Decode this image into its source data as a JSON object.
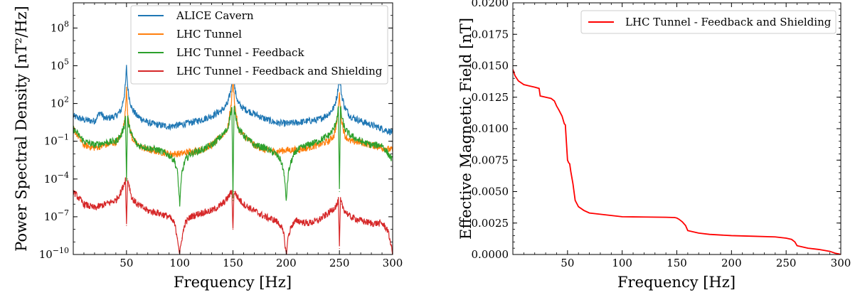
{
  "chart_data": [
    {
      "type": "line",
      "title": "",
      "xlabel": "Frequency [Hz]",
      "ylabel": "Power Spectral Density",
      "ylabel_unit": "[nT²/Hz]",
      "y_scale": "log",
      "xlim": [
        0,
        300
      ],
      "ylim": [
        1e-10,
        10000000000.0
      ],
      "x_ticks": [
        50,
        100,
        150,
        200,
        250,
        300
      ],
      "x_tick_labels": [
        "50",
        "100",
        "150",
        "200",
        "250",
        "300"
      ],
      "y_ticks": [
        1e-10,
        1e-07,
        0.0001,
        0.1,
        100,
        100000,
        100000000
      ],
      "y_tick_base": "10",
      "y_tick_exponents": [
        "−10",
        "−7",
        "−4",
        "−1",
        "2",
        "5",
        "8"
      ],
      "grid": false,
      "legend_position": "top-right",
      "series": [
        {
          "name": "ALICE Cavern",
          "color": "#1f77b4",
          "x": [
            0,
            10,
            20,
            25,
            30,
            40,
            45,
            48,
            49,
            50,
            51,
            52,
            55,
            60,
            70,
            80,
            90,
            100,
            110,
            120,
            130,
            140,
            145,
            148,
            149,
            150,
            151,
            152,
            155,
            160,
            170,
            180,
            190,
            200,
            210,
            220,
            230,
            240,
            245,
            248,
            249,
            250,
            251,
            252,
            255,
            260,
            270,
            280,
            290,
            300
          ],
          "y": [
            10,
            5,
            4,
            20,
            6,
            10,
            30,
            500,
            3000,
            80000,
            3000,
            500,
            40,
            10,
            3,
            2,
            1.5,
            2,
            3,
            5,
            10,
            30,
            100,
            1000,
            8000,
            20000,
            8000,
            1000,
            100,
            40,
            15,
            6,
            3,
            2.5,
            3,
            4,
            5,
            15,
            50,
            500,
            3000,
            8000,
            3000,
            500,
            50,
            10,
            4,
            2,
            1,
            0.5
          ]
        },
        {
          "name": "LHC Tunnel",
          "color": "#ff7f0e",
          "x": [
            0,
            10,
            20,
            30,
            40,
            45,
            48,
            49,
            50,
            51,
            52,
            55,
            60,
            70,
            80,
            90,
            100,
            110,
            120,
            130,
            140,
            145,
            148,
            149,
            150,
            151,
            152,
            155,
            160,
            170,
            180,
            190,
            200,
            210,
            220,
            230,
            240,
            245,
            248,
            249,
            250,
            251,
            252,
            255,
            260,
            270,
            280,
            290,
            300
          ],
          "y": [
            1,
            0.05,
            0.03,
            0.05,
            0.08,
            0.3,
            3,
            30,
            2000,
            30,
            3,
            0.2,
            0.05,
            0.02,
            0.015,
            0.01,
            0.01,
            0.015,
            0.02,
            0.05,
            0.3,
            1,
            50,
            500,
            10000,
            500,
            50,
            1,
            0.3,
            0.05,
            0.02,
            0.015,
            0.02,
            0.02,
            0.03,
            0.05,
            0.1,
            0.3,
            5,
            50,
            500,
            50,
            5,
            0.3,
            0.1,
            0.08,
            0.05,
            0.03,
            0.02
          ]
        },
        {
          "name": "LHC Tunnel - Feedback",
          "color": "#2ca02c",
          "x": [
            0,
            10,
            20,
            30,
            40,
            45,
            48,
            49,
            50,
            51,
            52,
            55,
            60,
            70,
            80,
            90,
            95,
            98,
            100,
            102,
            105,
            110,
            120,
            130,
            140,
            145,
            148,
            149,
            150,
            151,
            152,
            155,
            160,
            170,
            180,
            190,
            195,
            198,
            200,
            202,
            205,
            210,
            220,
            230,
            240,
            245,
            248,
            249,
            250,
            251,
            252,
            255,
            260,
            270,
            280,
            290,
            300
          ],
          "y": [
            1,
            0.1,
            0.05,
            0.08,
            0.1,
            0.3,
            2,
            10,
            0.0001,
            10,
            2,
            0.3,
            0.05,
            0.03,
            0.02,
            0.008,
            0.003,
            0.0003,
            1e-06,
            0.0003,
            0.003,
            0.01,
            0.02,
            0.05,
            0.3,
            1,
            20,
            50,
            2e-06,
            50,
            20,
            1,
            0.3,
            0.05,
            0.03,
            0.01,
            0.003,
            0.0003,
            2e-06,
            0.0003,
            0.003,
            0.02,
            0.05,
            0.1,
            0.3,
            1,
            10,
            50,
            1e-05,
            50,
            10,
            1,
            0.3,
            0.1,
            0.05,
            0.05,
            0.003
          ]
        },
        {
          "name": "LHC Tunnel - Feedback and Shielding",
          "color": "#d62728",
          "x": [
            0,
            10,
            20,
            30,
            40,
            45,
            48,
            49,
            50,
            51,
            52,
            55,
            60,
            70,
            80,
            90,
            95,
            98,
            100,
            102,
            105,
            110,
            120,
            130,
            140,
            145,
            148,
            149,
            150,
            151,
            152,
            155,
            160,
            170,
            180,
            190,
            195,
            198,
            200,
            202,
            205,
            210,
            220,
            230,
            240,
            245,
            248,
            249,
            250,
            251,
            252,
            255,
            260,
            270,
            280,
            290,
            295,
            298,
            300
          ],
          "y": [
            1e-05,
            1e-06,
            5e-07,
            1e-06,
            2e-06,
            1e-05,
            5e-05,
            0.0001,
            2e-08,
            0.0001,
            5e-05,
            3e-06,
            1e-06,
            3e-07,
            2e-07,
            1e-07,
            3e-08,
            2e-09,
            1e-10,
            2e-09,
            3e-08,
            1e-07,
            2e-07,
            3e-07,
            1e-06,
            3e-06,
            8e-06,
            1e-05,
            1e-08,
            1e-05,
            8e-06,
            3e-06,
            1e-06,
            3e-07,
            1e-07,
            5e-08,
            2e-08,
            3e-09,
            1e-10,
            3e-09,
            2e-08,
            5e-08,
            3e-08,
            5e-08,
            2e-07,
            5e-07,
            1e-06,
            2e-06,
            3e-10,
            2e-06,
            1e-06,
            3e-07,
            1e-07,
            5e-08,
            3e-08,
            3e-08,
            1e-08,
            1e-09,
            1e-10
          ]
        }
      ]
    },
    {
      "type": "line",
      "title": "",
      "xlabel": "Frequency [Hz]",
      "ylabel": "Effective Magnetic Field [nT]",
      "y_scale": "linear",
      "xlim": [
        0,
        300
      ],
      "ylim": [
        0,
        0.02
      ],
      "x_ticks": [
        50,
        100,
        150,
        200,
        250,
        300
      ],
      "x_tick_labels": [
        "50",
        "100",
        "150",
        "200",
        "250",
        "300"
      ],
      "y_ticks": [
        0,
        0.0025,
        0.005,
        0.0075,
        0.01,
        0.0125,
        0.015,
        0.0175,
        0.02
      ],
      "y_tick_labels": [
        "0.0000",
        "0.0025",
        "0.0050",
        "0.0075",
        "0.0100",
        "0.0125",
        "0.0150",
        "0.0175",
        "0.0200"
      ],
      "grid": false,
      "legend_position": "top-right",
      "series": [
        {
          "name": "LHC Tunnel - Feedback and Shielding",
          "color": "#ff0000",
          "x": [
            0,
            2,
            5,
            10,
            15,
            20,
            24,
            25,
            30,
            35,
            38,
            40,
            42,
            45,
            47,
            48,
            50,
            51,
            52,
            53,
            55,
            57,
            60,
            65,
            70,
            80,
            90,
            100,
            120,
            140,
            148,
            150,
            152,
            155,
            158,
            160,
            170,
            180,
            200,
            220,
            240,
            250,
            255,
            258,
            260,
            265,
            270,
            280,
            290,
            295,
            298,
            300
          ],
          "y": [
            0.0147,
            0.0142,
            0.0138,
            0.0135,
            0.0134,
            0.0133,
            0.0132,
            0.0126,
            0.0125,
            0.0124,
            0.0122,
            0.0118,
            0.0115,
            0.011,
            0.0104,
            0.0103,
            0.0075,
            0.0073,
            0.0072,
            0.0066,
            0.0056,
            0.0043,
            0.0038,
            0.0035,
            0.0033,
            0.0032,
            0.0031,
            0.003,
            0.00298,
            0.00296,
            0.00294,
            0.0029,
            0.0028,
            0.0026,
            0.0023,
            0.0019,
            0.0017,
            0.0016,
            0.0015,
            0.00145,
            0.0014,
            0.0013,
            0.0012,
            0.001,
            0.0007,
            0.0006,
            0.0005,
            0.0004,
            0.00025,
            0.0001,
            5e-05,
            0
          ]
        }
      ]
    }
  ]
}
